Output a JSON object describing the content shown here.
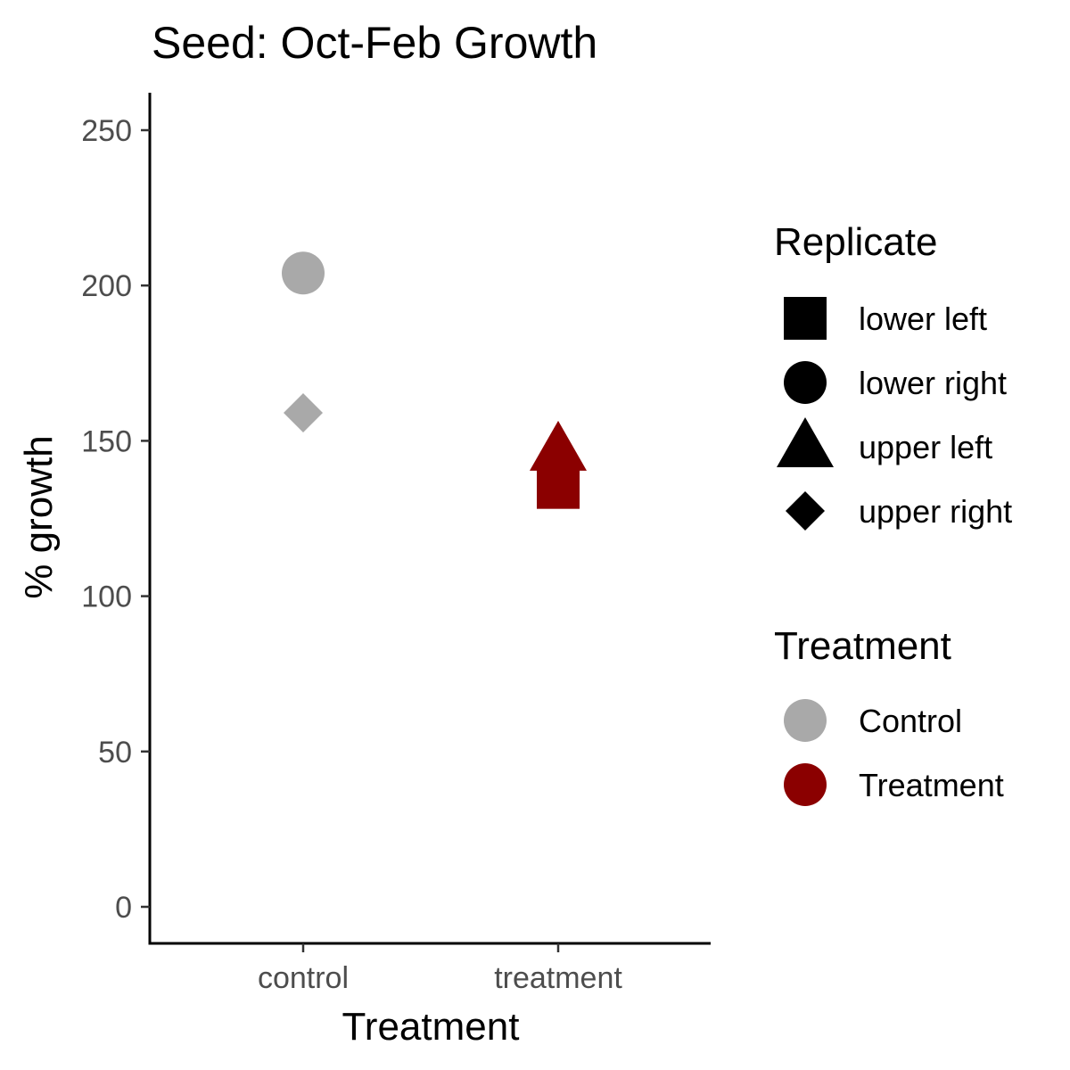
{
  "chart_data": {
    "type": "scatter",
    "title": "Seed: Oct-Feb Growth",
    "xlabel": "Treatment",
    "ylabel": "% growth",
    "categories": [
      "control",
      "treatment"
    ],
    "ylim": [
      -12,
      262
    ],
    "yticks": [
      0,
      50,
      100,
      150,
      200,
      250
    ],
    "grid": false,
    "legend_position": "right",
    "points": [
      {
        "x": "control",
        "y": 204,
        "replicate": "lower right",
        "treatment": "Control"
      },
      {
        "x": "control",
        "y": 159,
        "replicate": "upper right",
        "treatment": "Control"
      },
      {
        "x": "treatment",
        "y": 147,
        "replicate": "upper left",
        "treatment": "Treatment"
      },
      {
        "x": "treatment",
        "y": 135,
        "replicate": "lower left",
        "treatment": "Treatment"
      }
    ],
    "legends": [
      {
        "title": "Replicate",
        "kind": "shape",
        "entries": [
          {
            "label": "lower left",
            "shape": "square"
          },
          {
            "label": "lower right",
            "shape": "circle"
          },
          {
            "label": "upper left",
            "shape": "triangle"
          },
          {
            "label": "upper right",
            "shape": "diamond"
          }
        ]
      },
      {
        "title": "Treatment",
        "kind": "color",
        "entries": [
          {
            "label": "Control",
            "color": "#A9A9A9"
          },
          {
            "label": "Treatment",
            "color": "#8B0000"
          }
        ]
      }
    ]
  }
}
